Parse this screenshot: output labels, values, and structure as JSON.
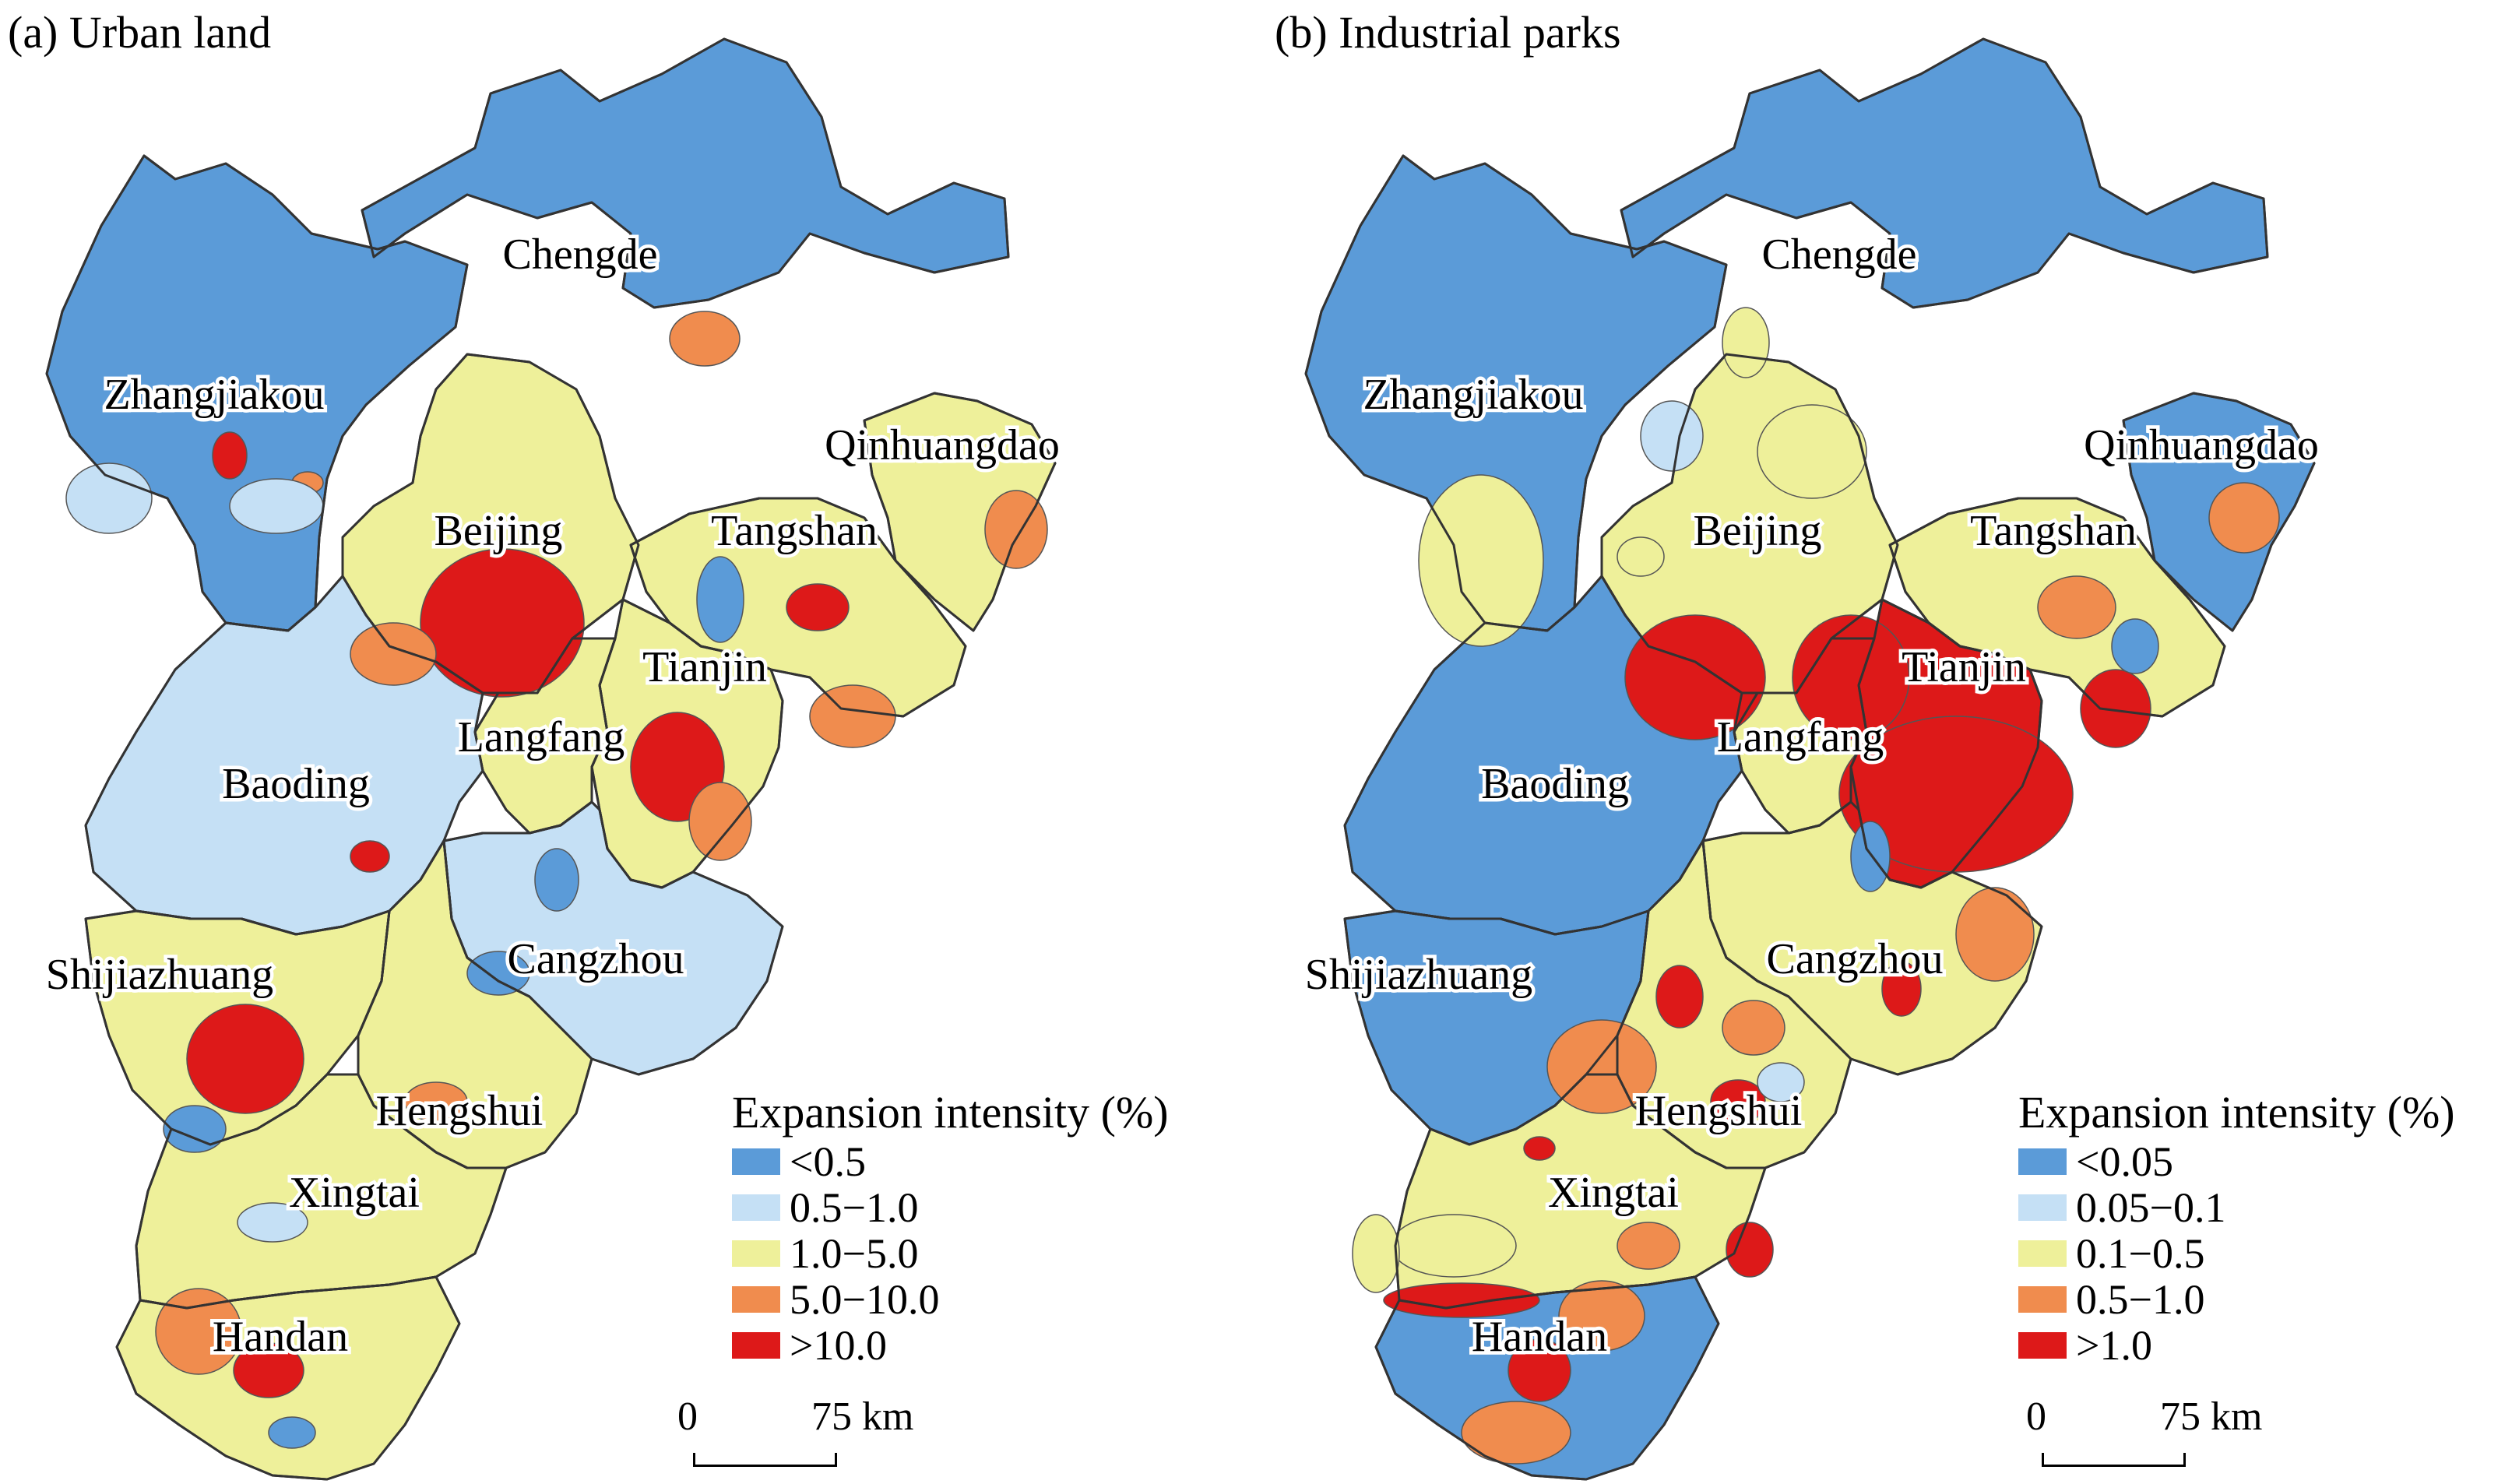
{
  "colors": {
    "c1": "#5b9bd8",
    "c2": "#c5e0f5",
    "c3": "#eef09a",
    "c4": "#f08c4e",
    "c5": "#dd1919",
    "outline": "#333333"
  },
  "panels": [
    {
      "title": "(a) Urban land",
      "legend": {
        "title": "Expansion intensity (%)",
        "items": [
          {
            "label": "<0.5",
            "color": "#5b9bd8"
          },
          {
            "label": "0.5−1.0",
            "color": "#c5e0f5"
          },
          {
            "label": "1.0−5.0",
            "color": "#eef09a"
          },
          {
            "label": "5.0−10.0",
            "color": "#f08c4e"
          },
          {
            "label": ">10.0",
            "color": "#dd1919"
          }
        ]
      },
      "scale": {
        "zero": "0",
        "distance": "75 km"
      },
      "cities": [
        {
          "name": "Chengde",
          "fill": "c1"
        },
        {
          "name": "Zhangjiakou",
          "fill": "c1"
        },
        {
          "name": "Qinhuangdao",
          "fill": "c3"
        },
        {
          "name": "Beijing",
          "fill": "c3"
        },
        {
          "name": "Tangshan",
          "fill": "c3"
        },
        {
          "name": "Tianjin",
          "fill": "c3"
        },
        {
          "name": "Langfang",
          "fill": "c3"
        },
        {
          "name": "Baoding",
          "fill": "c2"
        },
        {
          "name": "Cangzhou",
          "fill": "c2"
        },
        {
          "name": "Shijiazhuang",
          "fill": "c3"
        },
        {
          "name": "Hengshui",
          "fill": "c3"
        },
        {
          "name": "Xingtai",
          "fill": "c3"
        },
        {
          "name": "Handan",
          "fill": "c3"
        }
      ]
    },
    {
      "title": "(b) Industrial parks",
      "legend": {
        "title": "Expansion intensity (%)",
        "items": [
          {
            "label": "<0.05",
            "color": "#5b9bd8"
          },
          {
            "label": "0.05−0.1",
            "color": "#c5e0f5"
          },
          {
            "label": "0.1−0.5",
            "color": "#eef09a"
          },
          {
            "label": "0.5−1.0",
            "color": "#f08c4e"
          },
          {
            "label": ">1.0",
            "color": "#dd1919"
          }
        ]
      },
      "scale": {
        "zero": "0",
        "distance": "75 km"
      },
      "cities": [
        {
          "name": "Chengde",
          "fill": "c1"
        },
        {
          "name": "Zhangjiakou",
          "fill": "c1"
        },
        {
          "name": "Qinhuangdao",
          "fill": "c1"
        },
        {
          "name": "Beijing",
          "fill": "c3"
        },
        {
          "name": "Tangshan",
          "fill": "c3"
        },
        {
          "name": "Tianjin",
          "fill": "c5"
        },
        {
          "name": "Langfang",
          "fill": "c3"
        },
        {
          "name": "Baoding",
          "fill": "c1"
        },
        {
          "name": "Cangzhou",
          "fill": "c3"
        },
        {
          "name": "Shijiazhuang",
          "fill": "c1"
        },
        {
          "name": "Hengshui",
          "fill": "c3"
        },
        {
          "name": "Xingtai",
          "fill": "c3"
        },
        {
          "name": "Handan",
          "fill": "c1"
        }
      ]
    }
  ]
}
